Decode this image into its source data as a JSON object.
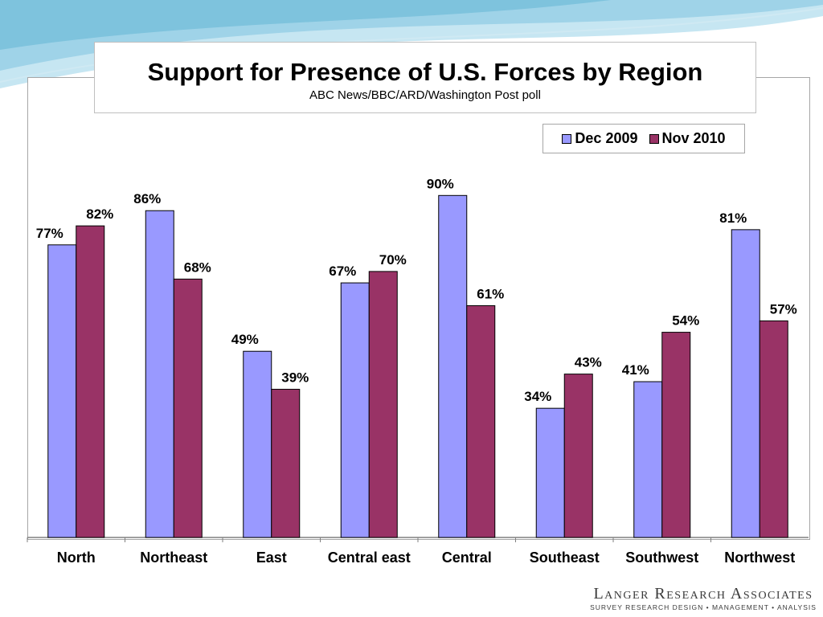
{
  "chart_data": {
    "type": "bar",
    "title": "Support for Presence of U.S. Forces by Region",
    "subtitle": "ABC News/BBC/ARD/Washington Post poll",
    "categories": [
      "North",
      "Northeast",
      "East",
      "Central east",
      "Central",
      "Southeast",
      "Southwest",
      "Northwest"
    ],
    "series": [
      {
        "name": "Dec 2009",
        "values": [
          77,
          86,
          49,
          67,
          90,
          34,
          41,
          81
        ],
        "labels": [
          "77%",
          "86%",
          "49%",
          "67%",
          "90%",
          "34%",
          "41%",
          "81%"
        ],
        "color": "#9999ff"
      },
      {
        "name": "Nov 2010",
        "values": [
          82,
          68,
          39,
          70,
          61,
          43,
          54,
          57
        ],
        "labels": [
          "82%",
          "68%",
          "39%",
          "70%",
          "61%",
          "43%",
          "54%",
          "57%"
        ],
        "color": "#993366"
      }
    ],
    "ylim": [
      0,
      100
    ],
    "grid": false,
    "legend_position": "top-right",
    "xlabel": "",
    "ylabel": ""
  },
  "branding": {
    "name": "Langer Research Associates",
    "tagline": "SURVEY RESEARCH DESIGN • MANAGEMENT • ANALYSIS"
  }
}
